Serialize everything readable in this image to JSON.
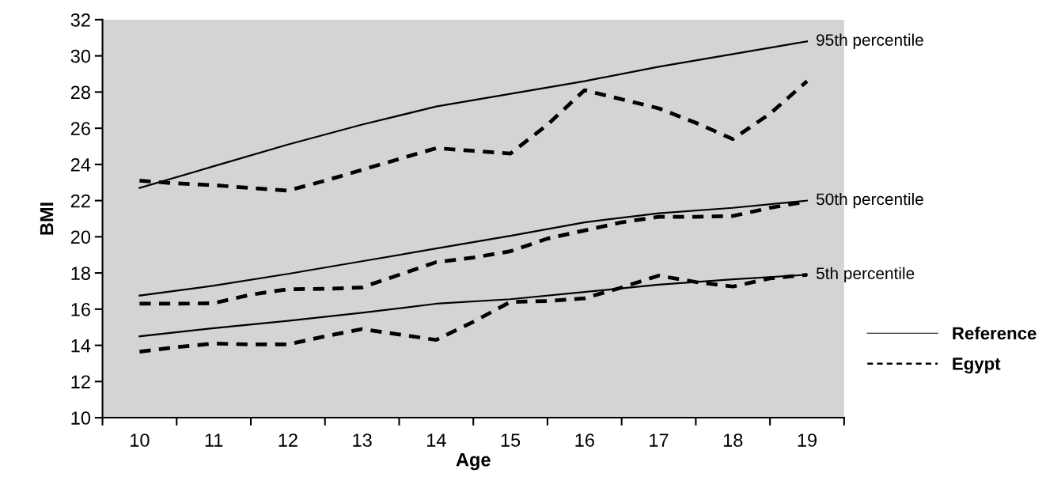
{
  "chart_data": {
    "type": "line",
    "xlabel": "Age",
    "ylabel": "BMI",
    "xlim": [
      9.5,
      19.5
    ],
    "xticks": [
      {
        "value": 9.5,
        "label": null
      },
      10,
      {
        "value": 10.5,
        "label": null
      },
      11,
      {
        "value": 11.5,
        "label": null
      },
      12,
      {
        "value": 12.5,
        "label": null
      },
      13,
      {
        "value": 13.5,
        "label": null
      },
      14,
      {
        "value": 14.5,
        "label": null
      },
      15,
      {
        "value": 15.5,
        "label": null
      },
      16,
      {
        "value": 16.5,
        "label": null
      },
      17,
      {
        "value": 17.5,
        "label": null
      },
      18,
      {
        "value": 18.5,
        "label": null
      },
      19,
      {
        "value": 19.5,
        "label": null
      }
    ],
    "ylim": [
      10,
      32
    ],
    "yticks": [
      10,
      12,
      14,
      16,
      18,
      20,
      22,
      24,
      26,
      28,
      30,
      32
    ],
    "grid": false,
    "legend": "right",
    "marker": "none",
    "series": [
      {
        "name": "Reference",
        "color": "#000000",
        "line_style": "solid",
        "x": [
          10,
          11,
          12,
          13,
          14,
          15,
          16,
          17,
          18,
          19
        ],
        "values": [
          22.7,
          23.9,
          25.1,
          26.2,
          27.2,
          27.9,
          28.6,
          29.4,
          30.1,
          30.8
        ]
      },
      {
        "color": "#000000",
        "line_style": "solid",
        "x": [
          10,
          11,
          12,
          13,
          14,
          15,
          16,
          17,
          18,
          19
        ],
        "values": [
          16.75,
          17.3,
          17.95,
          18.65,
          19.35,
          20.05,
          20.8,
          21.3,
          21.6,
          22.0
        ]
      },
      {
        "color": "#000000",
        "line_style": "solid",
        "x": [
          10,
          11,
          12,
          13,
          14,
          15,
          16,
          17,
          18,
          19
        ],
        "values": [
          14.5,
          14.95,
          15.35,
          15.8,
          16.3,
          16.55,
          16.95,
          17.35,
          17.65,
          17.9
        ]
      },
      {
        "name": "Egypt",
        "color": "#000000",
        "line_style": "dashed",
        "x": [
          10,
          10.5,
          11,
          11.5,
          12,
          12.5,
          13,
          13.5,
          14,
          14.5,
          15,
          15.5,
          16,
          16.5,
          17,
          17.5,
          18,
          18.5,
          19
        ],
        "values": [
          23.1,
          22.95,
          22.85,
          22.7,
          22.55,
          23.1,
          23.7,
          24.3,
          24.9,
          24.75,
          24.6,
          26.2,
          28.1,
          27.6,
          27.1,
          26.3,
          25.4,
          26.8,
          28.6
        ]
      },
      {
        "color": "#000000",
        "line_style": "dashed",
        "x": [
          10,
          10.5,
          11,
          11.5,
          12,
          12.5,
          13,
          13.5,
          14,
          14.5,
          15,
          15.5,
          16,
          16.5,
          17,
          17.5,
          18,
          18.5,
          19
        ],
        "values": [
          16.3,
          16.3,
          16.33,
          16.8,
          17.1,
          17.12,
          17.2,
          17.9,
          18.6,
          18.85,
          19.2,
          19.9,
          20.35,
          20.8,
          21.1,
          21.1,
          21.15,
          21.6,
          21.95
        ]
      },
      {
        "color": "#000000",
        "line_style": "dashed",
        "x": [
          10,
          10.5,
          11,
          11.5,
          12,
          12.5,
          13,
          13.5,
          14,
          14.5,
          15,
          15.5,
          16,
          16.5,
          17,
          17.5,
          18,
          18.5,
          19
        ],
        "values": [
          13.65,
          13.9,
          14.1,
          14.05,
          14.05,
          14.5,
          14.9,
          14.6,
          14.3,
          15.3,
          16.4,
          16.45,
          16.6,
          17.2,
          17.85,
          17.5,
          17.25,
          17.7,
          17.9
        ]
      }
    ],
    "annotations": [
      "95th percentile",
      "50th percentile",
      "5th percentile"
    ]
  }
}
